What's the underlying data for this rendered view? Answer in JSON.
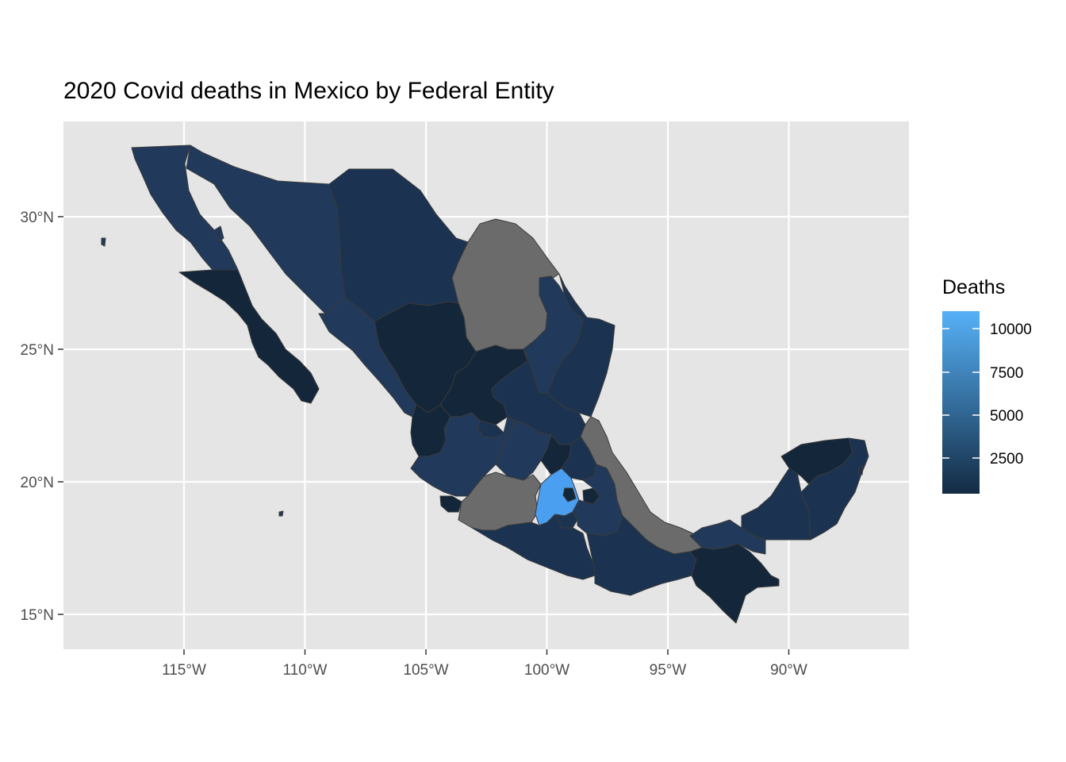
{
  "title": "2020 Covid deaths in Mexico by Federal Entity",
  "axes": {
    "x_ticks": [
      {
        "lon": -115,
        "label": "115°W"
      },
      {
        "lon": -110,
        "label": "110°W"
      },
      {
        "lon": -105,
        "label": "105°W"
      },
      {
        "lon": -100,
        "label": "100°W"
      },
      {
        "lon": -95,
        "label": "95°W"
      },
      {
        "lon": -90,
        "label": "90°W"
      }
    ],
    "y_ticks": [
      {
        "lat": 30,
        "label": "30°N"
      },
      {
        "lat": 25,
        "label": "25°N"
      },
      {
        "lat": 20,
        "label": "20°N"
      },
      {
        "lat": 15,
        "label": "15°N"
      }
    ],
    "lon_range": [
      -120,
      -85
    ],
    "lat_range": [
      14,
      33.5
    ]
  },
  "legend": {
    "title": "Deaths",
    "breaks": [
      "10000",
      "7500",
      "5000",
      "2500"
    ],
    "color_low": "#132B43",
    "color_high": "#56B1F7",
    "na_color": "#6b6b6b"
  },
  "colors": {
    "panel_bg": "#e5e5e5",
    "grid": "#ffffff",
    "low": "#14263a",
    "mid_low": "#1b3350",
    "mid": "#21395a",
    "highest": "#4a9ff0",
    "missing": "#6b6b6b",
    "border": "#3a3a3a"
  }
}
